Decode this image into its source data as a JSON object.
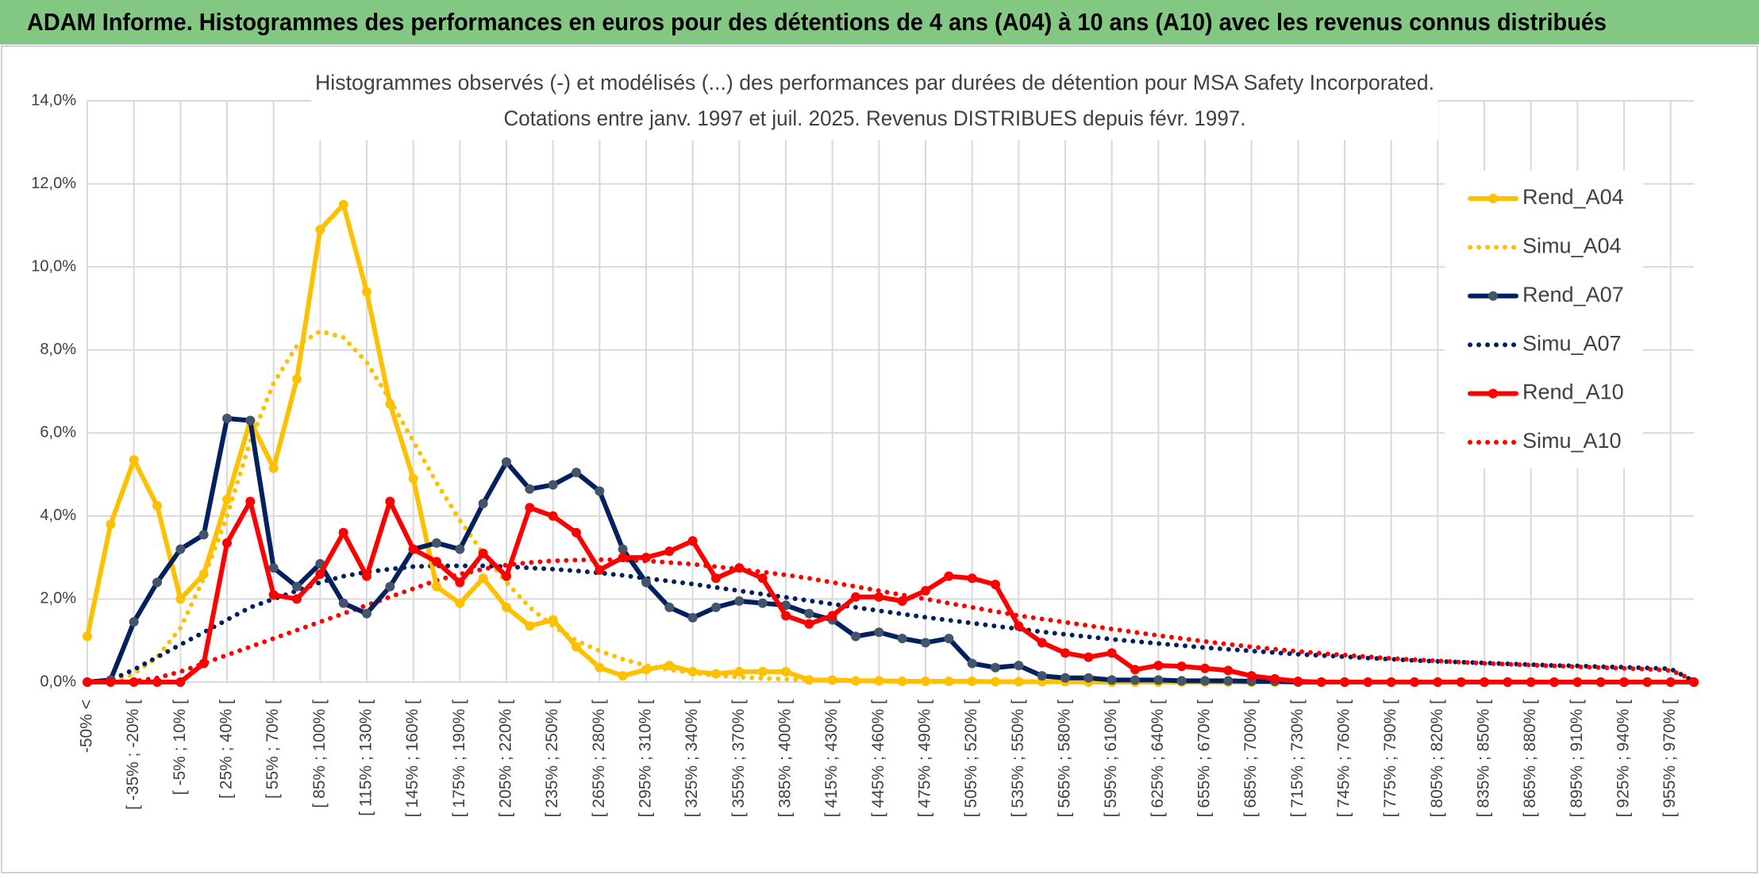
{
  "header": {
    "title": "ADAM Informe. Histogrammes des performances en euros pour des détentions de 4 ans (A04) à 10 ans (A10) avec les revenus connus distribués"
  },
  "chart_data": {
    "type": "line",
    "title": "Histogrammes observés (-) et modélisés (...) des performances par durées de détention pour MSA Safety Incorporated.",
    "subtitle": "Cotations entre janv. 1997 et juil. 2025. Revenus DISTRIBUES depuis févr. 1997.",
    "categories": [
      "-50% <",
      null,
      "[ -35% ; -20% [",
      null,
      "[ -5% ; 10% [",
      null,
      "[ 25% ; 40% [",
      null,
      "[ 55% ; 70% [",
      null,
      "[ 85% ; 100% [",
      null,
      "[ 115% ; 130% [",
      null,
      "[ 145% ; 160% [",
      null,
      "[ 175% ; 190% [",
      null,
      "[ 205% ; 220% [",
      null,
      "[ 235% ; 250% [",
      null,
      "[ 265% ; 280% [",
      null,
      "[ 295% ; 310% [",
      null,
      "[ 325% ; 340% [",
      null,
      "[ 355% ; 370% [",
      null,
      "[ 385% ; 400% [",
      null,
      "[ 415% ; 430% [",
      null,
      "[ 445% ; 460% [",
      null,
      "[ 475% ; 490% [",
      null,
      "[ 505% ; 520% [",
      null,
      "[ 535% ; 550% [",
      null,
      "[ 565% ; 580% [",
      null,
      "[ 595% ; 610% [",
      null,
      "[ 625% ; 640% [",
      null,
      "[ 655% ; 670% [",
      null,
      "[ 685% ; 700% [",
      null,
      "[ 715% ; 730% [",
      null,
      "[ 745% ; 760% [",
      null,
      "[ 775% ; 790% [",
      null,
      "[ 805% ; 820% [",
      null,
      "[ 835% ; 850% [",
      null,
      "[ 865% ; 880% [",
      null,
      "[ 895% ; 910% [",
      null,
      "[ 925% ; 940% [",
      null,
      "[ 955% ; 970% [",
      null
    ],
    "ylim": [
      0,
      14
    ],
    "yticks": [
      {
        "value": 0,
        "label": "0,0%"
      },
      {
        "value": 2,
        "label": "2,0%"
      },
      {
        "value": 4,
        "label": "4,0%"
      },
      {
        "value": 6,
        "label": "6,0%"
      },
      {
        "value": 8,
        "label": "8,0%"
      },
      {
        "value": 10,
        "label": "10,0%"
      },
      {
        "value": 12,
        "label": "12,0%"
      },
      {
        "value": 14,
        "label": "14,0%"
      }
    ],
    "grid": true,
    "legend": "right",
    "series": [
      {
        "name": "Rend_A04",
        "color": "#ffc000",
        "line_style": "solid",
        "markers": true,
        "values": [
          1.1,
          3.8,
          5.35,
          4.25,
          2.0,
          2.6,
          4.4,
          6.3,
          5.15,
          7.3,
          10.9,
          11.5,
          9.4,
          6.7,
          4.9,
          2.3,
          1.9,
          2.5,
          1.8,
          1.35,
          1.5,
          0.85,
          0.35,
          0.15,
          0.3,
          0.4,
          0.25,
          0.2,
          0.25,
          0.25,
          0.25,
          0.05,
          0.05,
          0.03,
          0.03,
          0.02,
          0.02,
          0.02,
          0.02,
          0.01,
          0.01,
          0.01,
          0.01,
          0,
          0,
          0,
          0,
          0,
          0,
          0,
          0,
          0,
          0,
          0,
          0,
          0,
          0,
          0,
          0,
          0,
          0,
          0,
          0,
          0,
          0,
          0,
          0,
          0,
          0,
          0
        ]
      },
      {
        "name": "Simu_A04",
        "color": "#ffc000",
        "line_style": "dotted",
        "markers": false,
        "values": [
          0,
          0,
          0.2,
          0.6,
          1.3,
          2.5,
          4.0,
          5.8,
          7.2,
          8.1,
          8.45,
          8.3,
          7.7,
          6.8,
          5.8,
          4.8,
          3.9,
          3.1,
          2.4,
          1.8,
          1.35,
          1.0,
          0.75,
          0.55,
          0.4,
          0.3,
          0.22,
          0.16,
          0.12,
          0.09,
          0.07,
          0.05,
          0.04,
          0.03,
          0.02,
          0.02,
          0.01,
          0.01,
          0.01,
          0.01,
          0,
          0,
          0,
          0,
          0,
          0,
          0,
          0,
          0,
          0,
          0,
          0,
          0,
          0,
          0,
          0,
          0,
          0,
          0,
          0,
          0,
          0,
          0,
          0,
          0,
          0,
          0,
          0,
          0,
          0
        ]
      },
      {
        "name": "Rend_A07",
        "color": "#002060",
        "line_style": "solid",
        "markers": true,
        "values": [
          0,
          0.05,
          1.45,
          2.4,
          3.2,
          3.55,
          6.35,
          6.3,
          2.75,
          2.3,
          2.85,
          1.9,
          1.65,
          2.3,
          3.2,
          3.35,
          3.2,
          4.3,
          5.3,
          4.65,
          4.75,
          5.05,
          4.6,
          3.2,
          2.4,
          1.8,
          1.55,
          1.8,
          1.95,
          1.9,
          1.85,
          1.65,
          1.5,
          1.1,
          1.2,
          1.05,
          0.95,
          1.05,
          0.45,
          0.35,
          0.4,
          0.15,
          0.1,
          0.1,
          0.05,
          0.05,
          0.05,
          0.03,
          0.03,
          0.03,
          0.02,
          0.02,
          0,
          0,
          0,
          0,
          0,
          0,
          0,
          0,
          0,
          0,
          0,
          0,
          0,
          0,
          0,
          0,
          0,
          0
        ]
      },
      {
        "name": "Simu_A07",
        "color": "#002060",
        "line_style": "dotted",
        "markers": false,
        "values": [
          0,
          0.05,
          0.3,
          0.6,
          0.9,
          1.2,
          1.5,
          1.8,
          2.0,
          2.2,
          2.4,
          2.55,
          2.65,
          2.72,
          2.78,
          2.8,
          2.8,
          2.8,
          2.78,
          2.75,
          2.72,
          2.68,
          2.63,
          2.57,
          2.5,
          2.43,
          2.36,
          2.28,
          2.2,
          2.12,
          2.04,
          1.96,
          1.88,
          1.8,
          1.72,
          1.64,
          1.56,
          1.49,
          1.42,
          1.35,
          1.28,
          1.21,
          1.15,
          1.09,
          1.03,
          0.98,
          0.93,
          0.88,
          0.83,
          0.79,
          0.75,
          0.71,
          0.67,
          0.64,
          0.61,
          0.58,
          0.55,
          0.52,
          0.5,
          0.48,
          0.46,
          0.44,
          0.42,
          0.4,
          0.39,
          0.37,
          0.36,
          0.34,
          0.32,
          0.02
        ]
      },
      {
        "name": "Rend_A10",
        "color": "#ff0000",
        "line_style": "solid",
        "markers": true,
        "values": [
          0,
          0,
          0,
          0,
          0,
          0.45,
          3.35,
          4.35,
          2.1,
          2.0,
          2.6,
          3.6,
          2.55,
          4.35,
          3.2,
          2.9,
          2.4,
          3.1,
          2.55,
          4.2,
          4.0,
          3.6,
          2.7,
          3.0,
          3.0,
          3.15,
          3.4,
          2.5,
          2.75,
          2.5,
          1.6,
          1.4,
          1.6,
          2.05,
          2.05,
          1.95,
          2.2,
          2.55,
          2.5,
          2.35,
          1.35,
          0.95,
          0.7,
          0.6,
          0.7,
          0.3,
          0.4,
          0.38,
          0.33,
          0.28,
          0.15,
          0.08,
          0.02,
          0,
          0,
          0,
          0,
          0,
          0,
          0,
          0,
          0,
          0,
          0,
          0,
          0,
          0,
          0,
          0,
          0
        ]
      },
      {
        "name": "Simu_A10",
        "color": "#ff0000",
        "line_style": "dotted",
        "markers": false,
        "values": [
          0,
          0,
          0.02,
          0.1,
          0.25,
          0.45,
          0.65,
          0.85,
          1.05,
          1.25,
          1.45,
          1.65,
          1.85,
          2.05,
          2.25,
          2.45,
          2.6,
          2.72,
          2.82,
          2.88,
          2.92,
          2.94,
          2.95,
          2.94,
          2.92,
          2.88,
          2.84,
          2.78,
          2.72,
          2.65,
          2.58,
          2.5,
          2.4,
          2.3,
          2.2,
          2.1,
          2.0,
          1.9,
          1.8,
          1.7,
          1.6,
          1.52,
          1.44,
          1.36,
          1.28,
          1.2,
          1.12,
          1.05,
          0.98,
          0.91,
          0.85,
          0.79,
          0.74,
          0.69,
          0.65,
          0.61,
          0.57,
          0.54,
          0.51,
          0.48,
          0.45,
          0.43,
          0.41,
          0.39,
          0.37,
          0.35,
          0.33,
          0.31,
          0.28,
          0.05
        ]
      }
    ]
  }
}
